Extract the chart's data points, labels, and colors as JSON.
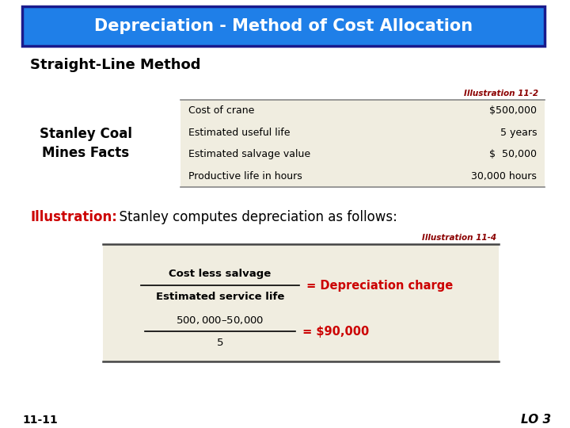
{
  "title": "Depreciation - Method of Cost Allocation",
  "title_bg": "#1f7fe8",
  "title_color": "#ffffff",
  "title_border": "#1a1a8c",
  "subtitle": "Straight-Line Method",
  "illus_label1": "Illustration 11-2",
  "illus_label1_color": "#8B0000",
  "table1_label": "Stanley Coal\nMines Facts",
  "table1_rows": [
    [
      "Cost of crane",
      "$500,000"
    ],
    [
      "Estimated useful life",
      "5 years"
    ],
    [
      "Estimated salvage value",
      "$  50,000"
    ],
    [
      "Productive life in hours",
      "30,000 hours"
    ]
  ],
  "table1_bg": "#f0ede0",
  "illus_text_red": "Illustration:",
  "illus_text_black": "  Stanley computes depreciation as follows:",
  "illus_label2": "Illustration 11-4",
  "illus_label2_color": "#8B0000",
  "formula_numerator": "Cost less salvage",
  "formula_denominator": "Estimated service life",
  "formula_equals": " = Depreciation charge",
  "formula_equals_color": "#cc0000",
  "formula_num2": "$500,000 – $50,000",
  "formula_den2": "5",
  "formula_result": " = $90,000",
  "formula_result_color": "#cc0000",
  "table2_bg": "#f0ede0",
  "footer_left": "11-11",
  "footer_right": "LO 3",
  "bg_color": "#ffffff"
}
